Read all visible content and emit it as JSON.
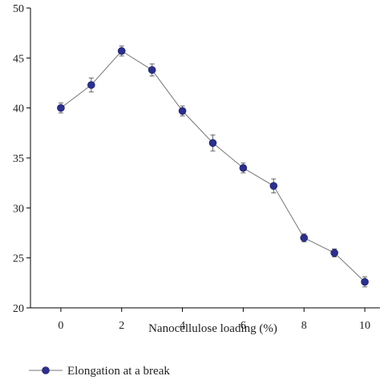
{
  "chart_data": {
    "type": "line",
    "xlabel": "Nanocellulose loading (%)",
    "ylabel": "",
    "xlim": [
      -1,
      10.5
    ],
    "ylim": [
      20,
      50
    ],
    "x_ticks": [
      0,
      2,
      4,
      6,
      8,
      10
    ],
    "y_ticks": [
      20,
      25,
      30,
      35,
      40,
      45,
      50
    ],
    "legend_placement": "bottom-left",
    "series": [
      {
        "name": "Elongation at a break",
        "color": "#2b2f8f",
        "line_color": "#777777",
        "x": [
          0,
          1,
          2,
          3,
          4,
          5,
          6,
          7,
          8,
          9,
          10
        ],
        "y": [
          40.0,
          42.3,
          45.7,
          43.8,
          39.7,
          36.5,
          34.0,
          32.2,
          27.0,
          25.5,
          22.6
        ],
        "err": [
          0.5,
          0.7,
          0.5,
          0.6,
          0.5,
          0.8,
          0.5,
          0.7,
          0.4,
          0.4,
          0.5
        ]
      }
    ]
  }
}
